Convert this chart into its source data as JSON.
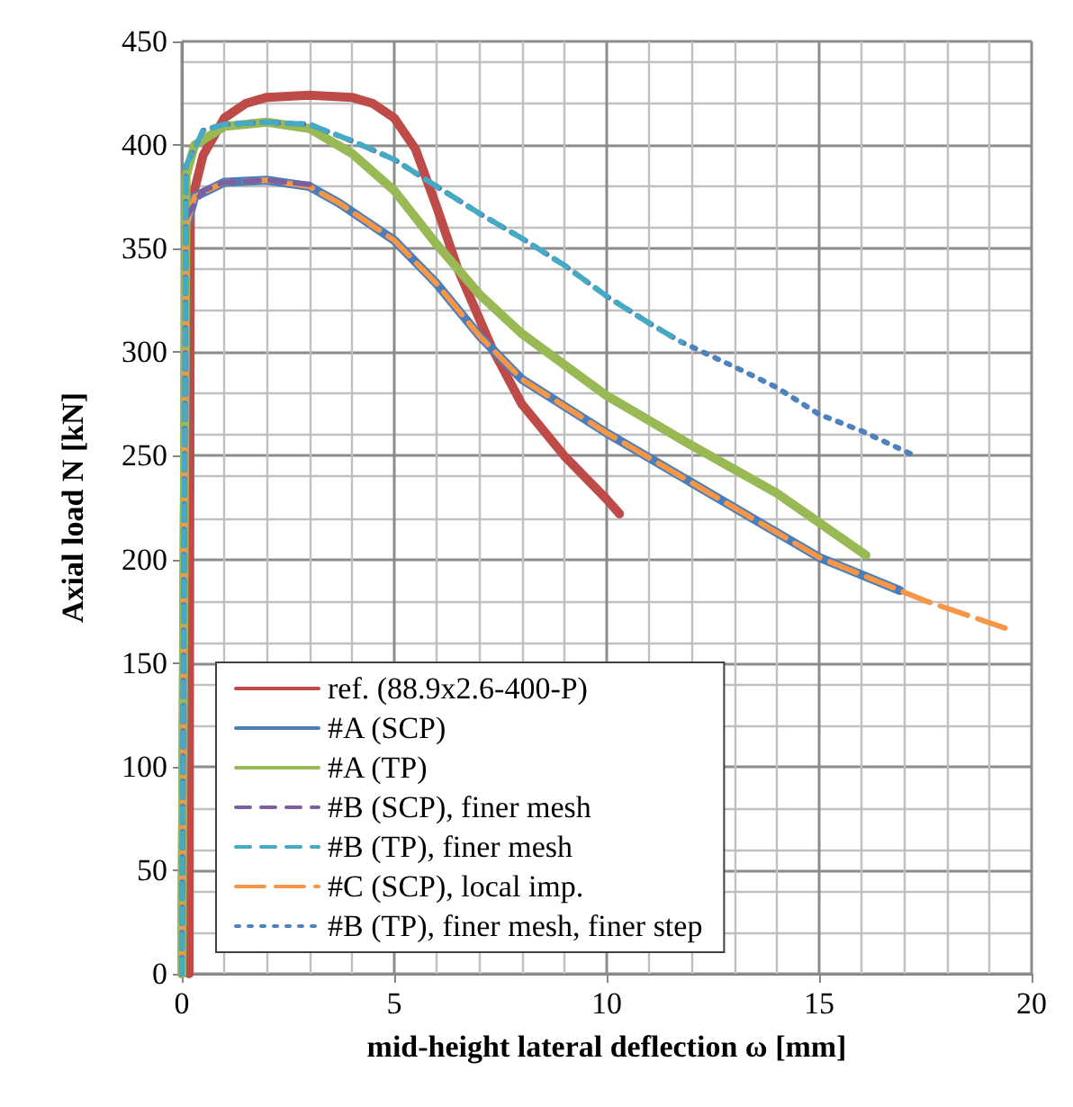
{
  "chart_data": {
    "type": "line",
    "xlabel": "mid-height lateral deflection ω [mm]",
    "ylabel": "Axial load N [kN]",
    "xlim": [
      0,
      20
    ],
    "xticks": [
      0,
      5,
      10,
      15,
      20
    ],
    "ylim": [
      0,
      450
    ],
    "yticks": [
      0,
      50,
      100,
      150,
      200,
      250,
      300,
      350,
      400,
      450
    ],
    "grid": true,
    "legend": "bottom left",
    "marker": "none",
    "series": [
      {
        "name": "ref. (88.9x2.6-400-P)",
        "color": "#be4b48",
        "line_style": "solid",
        "x": [
          0.17,
          0.2,
          0.5,
          1,
          1.5,
          2,
          3,
          4,
          4.5,
          5,
          5.5,
          6,
          6.5,
          7.3,
          8,
          9,
          10,
          10.3
        ],
        "values": [
          0,
          370,
          395,
          413,
          420,
          423,
          424,
          423,
          420,
          413,
          398,
          370,
          340,
          302,
          275,
          250,
          229,
          222
        ]
      },
      {
        "name": "#A (SCP)",
        "color": "#4a7ebb",
        "line_style": "solid",
        "x": [
          0,
          0.1,
          0.3,
          1,
          2,
          3,
          3.7,
          5,
          6,
          7,
          8,
          10,
          12,
          15,
          16.9
        ],
        "values": [
          0,
          360,
          375,
          382,
          383,
          380,
          372,
          354,
          333,
          308,
          287,
          261,
          237,
          201,
          185
        ]
      },
      {
        "name": "#A (TP)",
        "color": "#98b954",
        "line_style": "solid",
        "x": [
          0,
          0.1,
          0.3,
          1,
          2,
          3,
          4,
          5,
          6,
          7,
          8,
          10,
          12,
          14,
          16.1
        ],
        "values": [
          0,
          385,
          400,
          409,
          411,
          408,
          396,
          378,
          352,
          328,
          309,
          279,
          255,
          232,
          202
        ]
      },
      {
        "name": "#B (SCP), finer mesh",
        "color": "#7d60a0",
        "line_style": "dashed",
        "x": [
          0,
          0.1,
          0.5,
          1,
          2,
          3
        ],
        "values": [
          0,
          365,
          378,
          382,
          383,
          381
        ]
      },
      {
        "name": "#B (TP), finer mesh",
        "color": "#46aac5",
        "line_style": "dashed",
        "x": [
          0,
          0.1,
          0.5,
          1,
          2,
          3,
          4,
          5,
          6,
          7,
          8,
          9,
          10,
          11,
          11.75
        ],
        "values": [
          0,
          390,
          407,
          410,
          411,
          410,
          402,
          393,
          380,
          367,
          355,
          342,
          327,
          314,
          305
        ]
      },
      {
        "name": "#C (SCP), local imp.",
        "color": "#f79646",
        "line_style": "longdash",
        "x": [
          0,
          0.1,
          0.3,
          1,
          2,
          3,
          3.7,
          5,
          6,
          7,
          8,
          10,
          12,
          15,
          16.9,
          17.5,
          19.5
        ],
        "values": [
          0,
          360,
          375,
          382,
          383,
          380,
          372,
          354,
          333,
          308,
          287,
          261,
          237,
          201,
          185,
          180,
          166
        ]
      },
      {
        "name": "#B (TP), finer mesh, finer step",
        "color": "#4f81bd",
        "line_style": "dotted",
        "x": [
          0,
          0.1,
          0.5,
          1,
          2,
          3,
          4,
          5,
          6,
          7,
          8,
          9,
          10,
          11,
          11.75,
          13,
          14,
          15,
          16,
          17.25
        ],
        "values": [
          0,
          390,
          407,
          410,
          411,
          410,
          402,
          393,
          380,
          367,
          355,
          342,
          327,
          314,
          305,
          293,
          283,
          270,
          262,
          250
        ]
      }
    ]
  }
}
